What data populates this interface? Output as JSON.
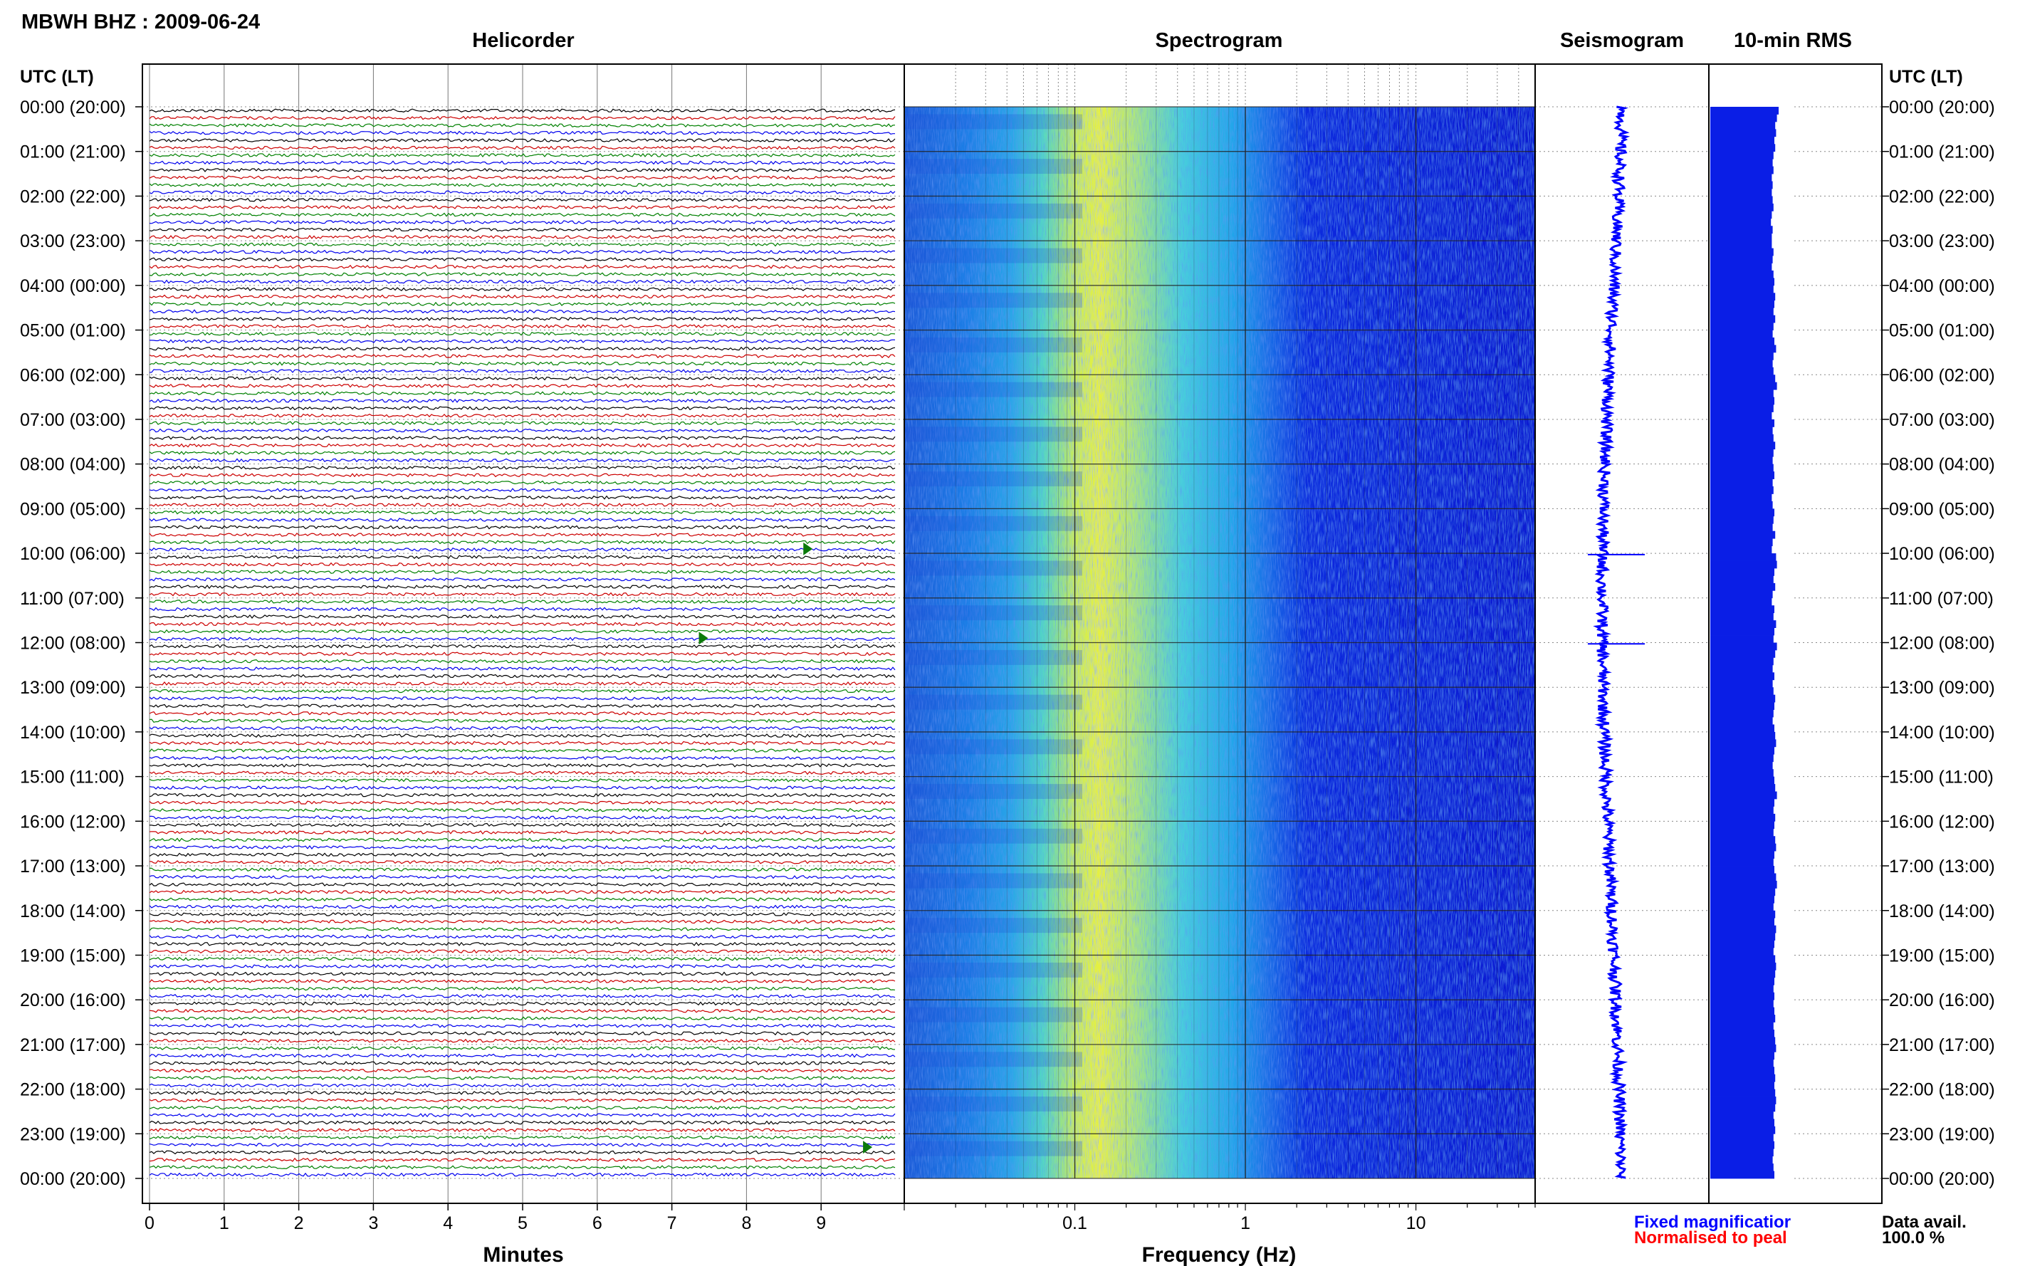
{
  "header": {
    "station_title": "MBWH BHZ : 2009-06-24"
  },
  "panels": {
    "helicorder": "Helicorder",
    "spectrogram": "Spectrogram",
    "seismogram": "Seismogram",
    "rms": "10-min RMS"
  },
  "axes": {
    "utc_label_left": "UTC (LT)",
    "utc_label_right": "UTC (LT)",
    "minutes_label": "Minutes",
    "frequency_label": "Frequency (Hz)"
  },
  "legend": {
    "fixed": "Fixed magnificatior",
    "normalised": "Normalised to peal",
    "fixed_color": "#0000ff",
    "normalised_color": "#ff0000"
  },
  "data_avail": {
    "label": "Data avail.",
    "value": "100.0 %"
  },
  "colors": {
    "trace_cycle": [
      "#000000",
      "#cc0000",
      "#008000",
      "#0000ee"
    ],
    "spectro_low": "#0a1fd0",
    "spectro_peak": "#e8f040",
    "rms_fill": "#0a1ee6"
  },
  "chart_data": {
    "type": "heatmap",
    "time_ticks": [
      "00:00 (20:00)",
      "01:00 (21:00)",
      "02:00 (22:00)",
      "03:00 (23:00)",
      "04:00 (00:00)",
      "05:00 (01:00)",
      "06:00 (02:00)",
      "07:00 (03:00)",
      "08:00 (04:00)",
      "09:00 (05:00)",
      "10:00 (06:00)",
      "11:00 (07:00)",
      "12:00 (08:00)",
      "13:00 (09:00)",
      "14:00 (10:00)",
      "15:00 (11:00)",
      "16:00 (12:00)",
      "17:00 (13:00)",
      "18:00 (14:00)",
      "19:00 (15:00)",
      "20:00 (16:00)",
      "21:00 (17:00)",
      "22:00 (18:00)",
      "23:00 (19:00)",
      "00:00 (20:00)"
    ],
    "minutes_ticks": [
      "0",
      "1",
      "2",
      "3",
      "4",
      "5",
      "6",
      "7",
      "8",
      "9"
    ],
    "minutes_range": [
      0,
      10
    ],
    "traces_per_hour": 6,
    "frequency_ticks": [
      "0.1",
      "1",
      "10"
    ],
    "frequency_range": [
      0.01,
      50
    ],
    "frequency_scale": "log",
    "spectrogram_peak_hz": [
      0.2,
      0.5
    ],
    "events": [
      {
        "hour": 9.9,
        "minute": 8.8
      },
      {
        "hour": 11.9,
        "minute": 7.4
      },
      {
        "hour": 23.3,
        "minute": 9.6
      }
    ],
    "rms_relative": [
      0.8,
      0.78,
      0.76,
      0.77,
      0.75,
      0.76,
      0.74,
      0.73,
      0.74,
      0.72,
      0.73,
      0.72,
      0.73,
      0.74,
      0.72,
      0.71,
      0.73,
      0.72,
      0.72,
      0.74,
      0.73,
      0.72,
      0.74,
      0.75,
      0.74,
      0.76,
      0.75,
      0.74,
      0.76,
      0.74,
      0.73,
      0.75,
      0.77,
      0.74,
      0.73,
      0.74,
      0.76,
      0.78,
      0.74,
      0.75,
      0.74,
      0.72,
      0.75,
      0.73,
      0.74,
      0.76,
      0.74,
      0.73,
      0.74,
      0.75,
      0.73,
      0.74,
      0.72,
      0.73,
      0.75,
      0.74,
      0.73,
      0.76,
      0.73,
      0.72,
      0.77,
      0.78,
      0.75,
      0.74,
      0.76,
      0.73,
      0.72,
      0.75,
      0.74,
      0.77,
      0.75,
      0.74,
      0.78,
      0.76,
      0.74,
      0.73,
      0.75,
      0.73,
      0.74,
      0.76,
      0.75,
      0.74,
      0.73,
      0.75,
      0.76,
      0.77,
      0.75,
      0.74,
      0.73,
      0.74,
      0.75,
      0.76,
      0.78,
      0.75,
      0.74,
      0.76,
      0.75,
      0.74,
      0.76,
      0.77,
      0.75,
      0.74,
      0.75,
      0.77,
      0.78,
      0.76,
      0.75,
      0.74,
      0.76,
      0.75,
      0.77,
      0.76,
      0.75,
      0.74,
      0.76,
      0.77,
      0.76,
      0.75,
      0.74,
      0.75,
      0.74,
      0.75,
      0.76,
      0.74,
      0.75,
      0.76,
      0.77,
      0.75,
      0.74,
      0.75,
      0.76,
      0.75,
      0.76,
      0.77,
      0.76,
      0.74,
      0.75,
      0.76,
      0.74,
      0.75,
      0.74,
      0.73,
      0.74,
      0.75
    ]
  }
}
